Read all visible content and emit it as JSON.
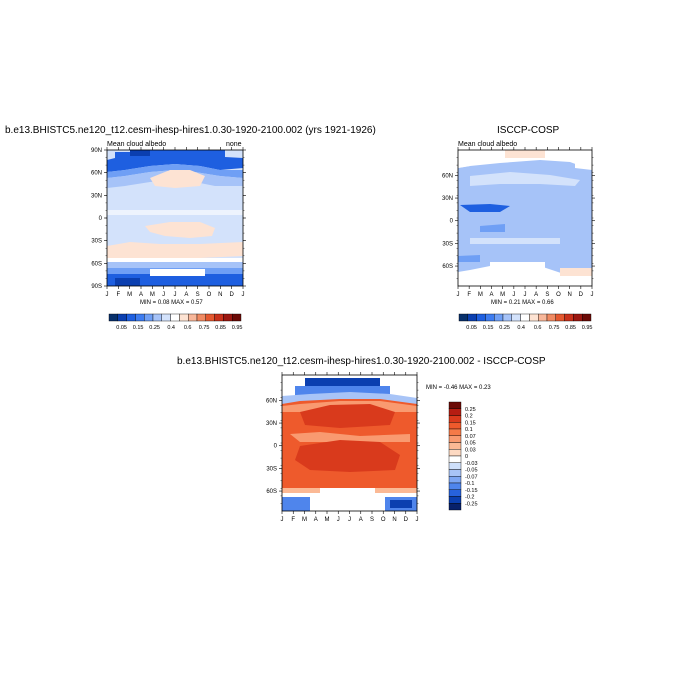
{
  "panel1": {
    "title": "b.e13.BHISTC5.ne120_t12.cesm-ihesp-hires1.0.30-1920-2100.002 (yrs 1921-1926)",
    "left_label": "Mean cloud albedo",
    "right_label": "none",
    "minmax": "MIN =   0.08 MAX =   0.57"
  },
  "panel2": {
    "title": "ISCCP-COSP",
    "left_label": "Mean cloud albedo",
    "minmax": "MIN =   0.21 MAX =   0.66"
  },
  "panel3": {
    "title": "b.e13.BHISTC5.ne120_t12.cesm-ihesp-hires1.0.30-1920-2100.002 - ISCCP-COSP",
    "minmax": "MIN =  -0.46 MAX =   0.23"
  },
  "axes": {
    "months": [
      "J",
      "F",
      "M",
      "A",
      "M",
      "J",
      "J",
      "A",
      "S",
      "O",
      "N",
      "D",
      "J"
    ],
    "lat_full": [
      "90N",
      "60N",
      "30N",
      "0",
      "30S",
      "60S",
      "90S"
    ],
    "lat_short": [
      "60N",
      "30N",
      "0",
      "30S",
      "60S"
    ]
  },
  "colorbar_abs": {
    "labels": [
      "0.05",
      "0.15",
      "0.25",
      "0.4",
      "0.6",
      "0.75",
      "0.85",
      "0.95"
    ],
    "colors": [
      "#08306b",
      "#0b3fb0",
      "#1e5fe0",
      "#3d7cf0",
      "#6f9ff5",
      "#a6c3f8",
      "#d3e2fb",
      "#ffffff",
      "#fde3d3",
      "#f8b79a",
      "#f08a62",
      "#e4582f",
      "#c8301a",
      "#9b1710",
      "#6b0a06"
    ]
  },
  "colorbar_diff": {
    "labels": [
      "0.25",
      "0.2",
      "0.15",
      "0.1",
      "0.07",
      "0.05",
      "0.03",
      "0",
      "-0.03",
      "-0.05",
      "-0.07",
      "-0.1",
      "-0.15",
      "-0.2",
      "-0.25"
    ],
    "colors": [
      "#6b0a06",
      "#b51d12",
      "#d93a1c",
      "#ee5a2c",
      "#f57a48",
      "#f99a70",
      "#fbb995",
      "#fdd9c2",
      "#ffffff",
      "#cfe0fb",
      "#a8c4f7",
      "#7da6f3",
      "#4f85ec",
      "#2762dc",
      "#0b3fb0",
      "#08216b"
    ]
  },
  "chart_data": [
    {
      "type": "heatmap",
      "title": "b.e13.BHISTC5.ne120_t12.cesm-ihesp-hires1.0.30-1920-2100.002 (yrs 1921-1926)",
      "variable": "Mean cloud albedo",
      "x": "month (J..J)",
      "y": "latitude 90S..90N",
      "min": 0.08,
      "max": 0.57,
      "zones": [
        {
          "lat": "90N-75N",
          "value": 0.2
        },
        {
          "lat": "75N-65N",
          "value": 0.45
        },
        {
          "lat": "60N-35N",
          "value": 0.5
        },
        {
          "lat": "30N-30S",
          "value": 0.45
        },
        {
          "lat": "30S-50S",
          "value": 0.55
        },
        {
          "lat": "60S-75S",
          "value": 0.45
        },
        {
          "lat": "75S-90S",
          "value": 0.15
        }
      ]
    },
    {
      "type": "heatmap",
      "title": "ISCCP-COSP",
      "variable": "Mean cloud albedo",
      "min": 0.21,
      "max": 0.66
    },
    {
      "type": "heatmap",
      "title": "b.e13.BHISTC5.ne120_t12.cesm-ihesp-hires1.0.30-1920-2100.002 - ISCCP-COSP",
      "min": -0.46,
      "max": 0.23
    }
  ]
}
